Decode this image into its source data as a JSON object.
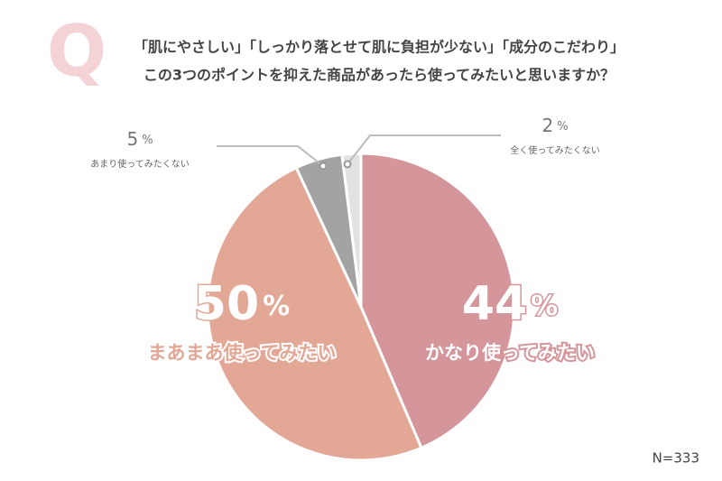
{
  "chart_data": {
    "type": "pie",
    "q_mark": "Q",
    "title": "「肌にやさしい」「しっかり落とせて肌に負担が少ない」「成分のこだわり」",
    "subtitle": "この3つのポイントを抑えた商品があったら使ってみたいと思いますか？",
    "categories": [
      "かなり使ってみたい",
      "まあまあ使ってみたい",
      "あまり使ってみたくない",
      "全く使ってみたくない"
    ],
    "values": [
      44,
      50,
      5,
      2
    ],
    "value_labels": [
      "44%",
      "50%",
      "5%",
      "2%"
    ],
    "colors": [
      "#d4969a",
      "#e3a796",
      "#a3a3a3",
      "#e2e2e2"
    ],
    "note": "N=333"
  }
}
